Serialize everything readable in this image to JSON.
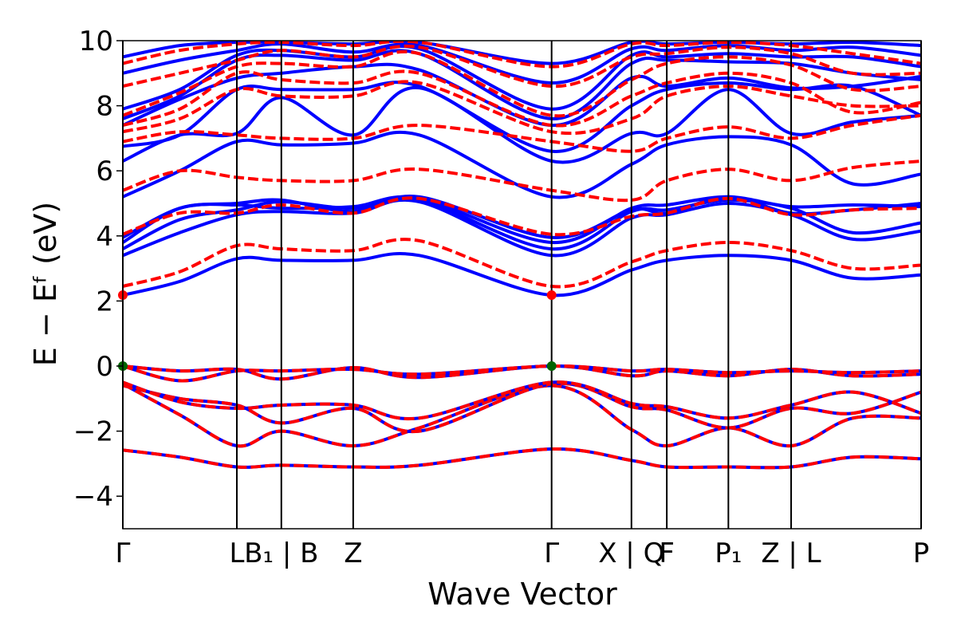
{
  "chart_data": {
    "type": "line",
    "title": "",
    "xlabel": "Wave Vector",
    "ylabel": "E − Eᶠ (eV)",
    "ylim": [
      -5,
      10
    ],
    "yticks": [
      -4,
      -2,
      0,
      2,
      4,
      6,
      8,
      10
    ],
    "ytick_labels": [
      "−4",
      "−2",
      "0",
      "2",
      "4",
      "6",
      "8",
      "10"
    ],
    "xlim": [
      0,
      7
    ],
    "kpoints": [
      {
        "x": 0.0,
        "label": "Γ"
      },
      {
        "x": 1.0,
        "label": "L"
      },
      {
        "x": 1.39,
        "label": "B₁ | B"
      },
      {
        "x": 2.02,
        "label": "Z"
      },
      {
        "x": 3.76,
        "label": "Γ"
      },
      {
        "x": 4.46,
        "label": "X | Q"
      },
      {
        "x": 4.77,
        "label": "F"
      },
      {
        "x": 5.31,
        "label": "P₁"
      },
      {
        "x": 5.86,
        "label": "Z | L"
      },
      {
        "x": 7.0,
        "label": "P"
      }
    ],
    "grid": false,
    "legend": "none",
    "colors": {
      "spin_up": "#0000ff",
      "spin_down": "#ff0000",
      "vbm": "#006400",
      "cbm": "#ff0000"
    },
    "markers": [
      {
        "name": "VBM",
        "points": [
          [
            0.0,
            0.0
          ],
          [
            3.76,
            0.0
          ]
        ]
      },
      {
        "name": "CBM",
        "points": [
          [
            0.0,
            2.18
          ],
          [
            3.76,
            2.18
          ]
        ]
      }
    ],
    "series": [
      {
        "style": "spin-down",
        "x": [
          0,
          0.5,
          1,
          1.39,
          2.02,
          2.6,
          3.76,
          4.46,
          4.77,
          5.31,
          5.86,
          6.4,
          7
        ],
        "y": [
          -2.58,
          -2.8,
          -3.1,
          -3.05,
          -3.1,
          -3.05,
          -2.55,
          -2.9,
          -3.1,
          -3.1,
          -3.1,
          -2.8,
          -2.85
        ]
      },
      {
        "style": "spin-down",
        "x": [
          0,
          0.5,
          1,
          1.39,
          2.02,
          2.6,
          3.76,
          4.46,
          4.77,
          5.31,
          5.86,
          6.4,
          7
        ],
        "y": [
          -0.55,
          -1.5,
          -2.45,
          -2.0,
          -2.45,
          -1.9,
          -0.6,
          -1.95,
          -2.45,
          -1.9,
          -2.45,
          -1.6,
          -1.6
        ]
      },
      {
        "style": "spin-down",
        "x": [
          0,
          0.5,
          1,
          1.39,
          2.02,
          2.6,
          3.76,
          4.46,
          4.77,
          5.31,
          5.86,
          6.4,
          7
        ],
        "y": [
          -0.6,
          -1.0,
          -1.2,
          -1.75,
          -1.3,
          -2.0,
          -0.55,
          -1.25,
          -1.35,
          -1.9,
          -1.3,
          -1.45,
          -0.8
        ]
      },
      {
        "style": "spin-down",
        "x": [
          0,
          0.5,
          1,
          1.39,
          2.02,
          2.6,
          3.76,
          4.46,
          4.77,
          5.31,
          5.86,
          6.4,
          7
        ],
        "y": [
          -0.5,
          -1.1,
          -1.3,
          -1.2,
          -1.2,
          -1.6,
          -0.5,
          -1.15,
          -1.25,
          -1.6,
          -1.2,
          -0.8,
          -1.45
        ]
      },
      {
        "style": "spin-down",
        "x": [
          0,
          0.5,
          1,
          1.39,
          2.02,
          2.6,
          3.76,
          4.46,
          4.77,
          5.31,
          5.86,
          6.4,
          7
        ],
        "y": [
          0.0,
          -0.15,
          -0.1,
          -0.4,
          -0.05,
          -0.35,
          0.0,
          -0.3,
          -0.15,
          -0.3,
          -0.1,
          -0.3,
          -0.25
        ]
      },
      {
        "style": "spin-down",
        "x": [
          0,
          0.5,
          1,
          1.39,
          2.02,
          2.6,
          3.76,
          4.46,
          4.77,
          5.31,
          5.86,
          6.4,
          7
        ],
        "y": [
          0.0,
          -0.45,
          -0.15,
          -0.15,
          -0.1,
          -0.25,
          0.0,
          -0.15,
          -0.1,
          -0.2,
          -0.15,
          -0.2,
          -0.15
        ]
      },
      {
        "style": "spin-up",
        "x": [
          0,
          0.5,
          1,
          1.39,
          2.02,
          2.6,
          3.76,
          4.46,
          4.77,
          5.31,
          5.86,
          6.4,
          7
        ],
        "y": [
          2.18,
          2.6,
          3.3,
          3.25,
          3.25,
          3.4,
          2.18,
          2.95,
          3.25,
          3.4,
          3.25,
          2.7,
          2.8
        ]
      },
      {
        "style": "spin-down",
        "x": [
          0,
          0.5,
          1,
          1.39,
          2.02,
          2.6,
          3.76,
          4.46,
          4.77,
          5.31,
          5.86,
          6.4,
          7
        ],
        "y": [
          2.45,
          2.9,
          3.7,
          3.6,
          3.55,
          3.85,
          2.45,
          3.2,
          3.55,
          3.8,
          3.55,
          3.0,
          3.1
        ]
      },
      {
        "style": "spin-up",
        "x": [
          0,
          0.5,
          1,
          1.39,
          2.02,
          2.6,
          3.76,
          4.46,
          4.77,
          5.31,
          5.86,
          6.4,
          7
        ],
        "y": [
          3.4,
          4.1,
          4.65,
          4.75,
          4.7,
          5.05,
          3.4,
          4.55,
          4.65,
          5.0,
          4.65,
          3.9,
          4.15
        ]
      },
      {
        "style": "spin-up",
        "x": [
          0,
          0.5,
          1,
          1.39,
          2.02,
          2.6,
          3.76,
          4.46,
          4.77,
          5.31,
          5.86,
          6.4,
          7
        ],
        "y": [
          3.6,
          4.5,
          4.8,
          5.05,
          4.85,
          5.1,
          3.6,
          4.75,
          4.8,
          5.1,
          4.85,
          4.1,
          4.4
        ]
      },
      {
        "style": "spin-up",
        "x": [
          0,
          0.5,
          1,
          1.39,
          2.02,
          2.6,
          3.76,
          4.46,
          4.77,
          5.31,
          5.86,
          6.4,
          7
        ],
        "y": [
          3.8,
          4.85,
          4.95,
          4.85,
          4.9,
          5.15,
          3.8,
          4.85,
          4.95,
          5.2,
          4.9,
          4.95,
          4.9
        ]
      },
      {
        "style": "spin-up",
        "x": [
          0,
          0.5,
          1,
          1.39,
          2.02,
          2.6,
          3.76,
          4.46,
          4.77,
          5.31,
          5.86,
          6.4,
          7
        ],
        "y": [
          3.95,
          4.85,
          5.0,
          5.1,
          4.75,
          5.2,
          3.95,
          4.8,
          4.7,
          5.2,
          4.7,
          4.8,
          5.0
        ]
      },
      {
        "style": "spin-down",
        "x": [
          0,
          0.5,
          1,
          1.39,
          2.02,
          2.6,
          3.76,
          4.46,
          4.77,
          5.31,
          5.86,
          6.4,
          7
        ],
        "y": [
          4.05,
          4.7,
          4.7,
          4.95,
          4.7,
          5.15,
          4.05,
          4.6,
          4.7,
          5.15,
          4.65,
          4.8,
          4.85
        ]
      },
      {
        "style": "spin-up",
        "x": [
          0,
          0.5,
          1,
          1.39,
          2.02,
          2.6,
          3.76,
          4.46,
          4.77,
          5.31,
          5.86,
          6.4,
          7
        ],
        "y": [
          5.2,
          6.0,
          6.9,
          6.8,
          6.85,
          7.1,
          5.2,
          6.2,
          6.8,
          7.05,
          6.8,
          5.6,
          5.9
        ]
      },
      {
        "style": "spin-down",
        "x": [
          0,
          0.5,
          1,
          1.39,
          2.02,
          2.6,
          3.76,
          4.46,
          4.77,
          5.31,
          5.86,
          6.4,
          7
        ],
        "y": [
          5.4,
          6.0,
          5.8,
          5.7,
          5.7,
          6.05,
          5.4,
          5.1,
          5.7,
          6.05,
          5.7,
          6.1,
          6.3
        ]
      },
      {
        "style": "spin-up",
        "x": [
          0,
          0.5,
          1,
          1.39,
          2.02,
          2.6,
          3.76,
          4.46,
          4.77,
          5.31,
          5.86,
          6.4,
          7
        ],
        "y": [
          6.3,
          7.1,
          7.15,
          8.25,
          7.1,
          8.55,
          6.3,
          7.15,
          7.15,
          8.5,
          7.15,
          7.5,
          7.7
        ]
      },
      {
        "style": "spin-down",
        "x": [
          0,
          0.5,
          1,
          1.39,
          2.02,
          2.6,
          3.76,
          4.46,
          4.77,
          5.31,
          5.86,
          6.4,
          7
        ],
        "y": [
          6.9,
          7.2,
          7.1,
          7.0,
          7.0,
          7.4,
          6.9,
          6.6,
          7.0,
          7.35,
          7.0,
          7.4,
          7.7
        ]
      },
      {
        "style": "spin-up",
        "x": [
          0,
          0.5,
          1,
          1.39,
          2.02,
          2.6,
          3.76,
          4.46,
          4.77,
          5.31,
          5.86,
          6.4,
          7
        ],
        "y": [
          6.75,
          7.1,
          8.5,
          8.5,
          8.5,
          8.6,
          6.6,
          8.0,
          8.5,
          8.7,
          8.5,
          8.6,
          7.7
        ]
      },
      {
        "style": "spin-up",
        "x": [
          0,
          0.5,
          1,
          1.39,
          2.02,
          2.6,
          3.76,
          4.46,
          4.77,
          5.31,
          5.86,
          6.4,
          7
        ],
        "y": [
          7.4,
          8.2,
          8.85,
          9.0,
          9.2,
          9.1,
          7.4,
          8.85,
          8.6,
          8.85,
          8.55,
          8.6,
          8.9
        ]
      },
      {
        "style": "spin-up",
        "x": [
          0,
          0.5,
          1,
          1.39,
          2.02,
          2.6,
          3.76,
          4.46,
          4.77,
          5.31,
          5.86,
          6.4,
          7
        ],
        "y": [
          7.6,
          8.3,
          9.4,
          9.55,
          9.4,
          9.6,
          7.6,
          9.3,
          9.4,
          9.35,
          9.3,
          9.0,
          8.8
        ]
      },
      {
        "style": "spin-up",
        "x": [
          0,
          0.5,
          1,
          1.39,
          2.02,
          2.6,
          3.76,
          4.46,
          4.77,
          5.31,
          5.86,
          6.4,
          7
        ],
        "y": [
          7.9,
          8.5,
          9.55,
          9.7,
          9.5,
          9.75,
          7.9,
          9.55,
          9.5,
          9.6,
          9.5,
          9.5,
          9.2
        ]
      },
      {
        "style": "spin-up",
        "x": [
          0,
          0.5,
          1,
          1.39,
          2.02,
          2.6,
          3.76,
          4.46,
          4.77,
          5.31,
          5.86,
          6.4,
          7
        ],
        "y": [
          9.0,
          9.4,
          9.7,
          9.9,
          9.65,
          9.85,
          8.7,
          9.75,
          9.7,
          9.85,
          9.7,
          9.8,
          9.55
        ]
      },
      {
        "style": "spin-up",
        "x": [
          0,
          0.5,
          1,
          1.39,
          2.02,
          2.6,
          3.76,
          4.46,
          4.77,
          5.31,
          5.86,
          6.4,
          7
        ],
        "y": [
          9.5,
          9.85,
          9.95,
          9.95,
          9.9,
          9.95,
          9.3,
          9.95,
          9.9,
          9.95,
          9.9,
          9.95,
          9.85
        ]
      },
      {
        "style": "spin-down",
        "x": [
          0,
          0.5,
          1,
          1.39,
          2.02,
          2.6,
          3.76,
          4.46,
          4.77,
          5.31,
          5.86,
          6.4,
          7
        ],
        "y": [
          7.2,
          7.6,
          8.5,
          8.3,
          8.3,
          8.7,
          7.2,
          7.6,
          8.3,
          8.6,
          8.3,
          8.0,
          8.0
        ]
      },
      {
        "style": "spin-down",
        "x": [
          0,
          0.5,
          1,
          1.39,
          2.02,
          2.6,
          3.76,
          4.46,
          4.77,
          5.31,
          5.86,
          6.4,
          7
        ],
        "y": [
          7.4,
          7.9,
          9.0,
          8.8,
          8.7,
          9.0,
          7.4,
          8.3,
          8.7,
          9.0,
          8.7,
          7.8,
          8.1
        ]
      },
      {
        "style": "spin-down",
        "x": [
          0,
          0.5,
          1,
          1.39,
          2.02,
          2.6,
          3.76,
          4.46,
          4.77,
          5.31,
          5.86,
          6.4,
          7
        ],
        "y": [
          7.7,
          8.4,
          9.2,
          9.3,
          9.2,
          9.6,
          7.7,
          8.8,
          9.3,
          9.5,
          9.25,
          8.5,
          8.6
        ]
      },
      {
        "style": "spin-down",
        "x": [
          0,
          0.5,
          1,
          1.39,
          2.02,
          2.6,
          3.76,
          4.46,
          4.77,
          5.31,
          5.86,
          6.4,
          7
        ],
        "y": [
          8.6,
          9.0,
          9.4,
          9.7,
          9.5,
          9.8,
          8.6,
          9.5,
          9.6,
          9.8,
          9.6,
          9.0,
          9.0
        ]
      },
      {
        "style": "spin-down",
        "x": [
          0,
          0.5,
          1,
          1.39,
          2.02,
          2.6,
          3.76,
          4.46,
          4.77,
          5.31,
          5.86,
          6.4,
          7
        ],
        "y": [
          9.3,
          9.7,
          9.9,
          9.95,
          9.85,
          9.95,
          9.2,
          9.9,
          9.85,
          9.95,
          9.85,
          9.6,
          9.3
        ]
      }
    ]
  }
}
